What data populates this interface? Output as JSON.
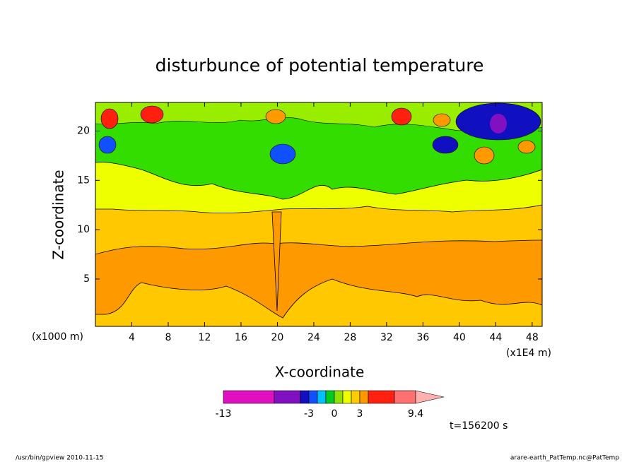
{
  "chart_data": {
    "type": "contour",
    "title": "disturbunce of potential temperature",
    "xlabel": "X-coordinate",
    "ylabel": "Z-coordinate",
    "x_unit_left": "(x1000 m)",
    "x_unit_right": "(x1E4 m)",
    "xlim": [
      0,
      49.1
    ],
    "ylim": [
      0.2,
      22.9
    ],
    "xticks": [
      4,
      8,
      12,
      16,
      20,
      24,
      28,
      32,
      36,
      40,
      44,
      48
    ],
    "yticks": [
      5,
      10,
      15,
      20
    ],
    "colorbar": {
      "colors": [
        "#e010c0",
        "#8010c0",
        "#1010c0",
        "#1050ff",
        "#00c0ff",
        "#00cc20",
        "#90e000",
        "#eeff00",
        "#ffcc00",
        "#ff9900",
        "#ff2010",
        "#ff7070",
        "#ffb0b0"
      ],
      "ticks": [
        -13,
        -3,
        0,
        3,
        9.4
      ]
    },
    "time_label": "t=156200 s",
    "footer_left": "/usr/bin/gpview   2010-11-15",
    "footer_right": "arare-earth_PatTemp.nc@PatTemp"
  }
}
